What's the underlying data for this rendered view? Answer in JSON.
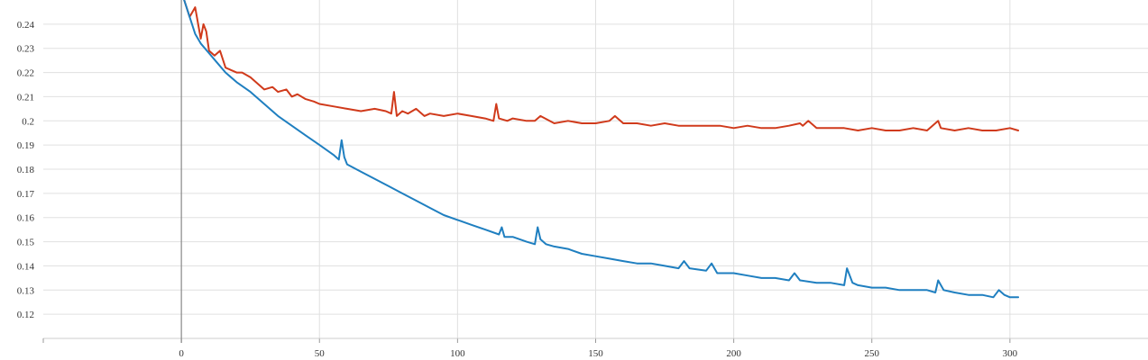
{
  "chart_data": {
    "type": "line",
    "title": "",
    "xlabel": "",
    "ylabel": "",
    "xlim": [
      -50,
      350
    ],
    "ylim": [
      0.11,
      0.25
    ],
    "x_ticks": [
      0,
      50,
      100,
      150,
      200,
      250,
      300
    ],
    "x_tick_labels": [
      "0",
      "50",
      "100",
      "150",
      "200",
      "250",
      "300"
    ],
    "y_ticks": [
      0.12,
      0.13,
      0.14,
      0.15,
      0.16,
      0.17,
      0.18,
      0.19,
      0.2,
      0.21,
      0.22,
      0.23,
      0.24
    ],
    "y_tick_labels": [
      "0.12",
      "0.13",
      "0.14",
      "0.15",
      "0.16",
      "0.17",
      "0.18",
      "0.19",
      "0.2",
      "0.21",
      "0.22",
      "0.23",
      "0.24"
    ],
    "grid": true,
    "legend": "none",
    "series": [
      {
        "color": "#d03a1b",
        "x": [
          1,
          3,
          5,
          7,
          8,
          9,
          10,
          12,
          14,
          16,
          18,
          20,
          22,
          25,
          28,
          30,
          33,
          35,
          38,
          40,
          42,
          45,
          48,
          50,
          55,
          60,
          65,
          70,
          74,
          76,
          77,
          78,
          80,
          82,
          85,
          88,
          90,
          95,
          100,
          105,
          110,
          113,
          114,
          115,
          118,
          120,
          125,
          128,
          130,
          135,
          140,
          145,
          150,
          155,
          157,
          160,
          165,
          170,
          175,
          180,
          185,
          190,
          195,
          200,
          205,
          210,
          215,
          220,
          224,
          225,
          227,
          230,
          235,
          240,
          245,
          250,
          255,
          260,
          265,
          270,
          274,
          275,
          280,
          285,
          290,
          295,
          300,
          303
        ],
        "y": [
          0.25,
          0.243,
          0.247,
          0.234,
          0.24,
          0.237,
          0.229,
          0.227,
          0.229,
          0.222,
          0.221,
          0.22,
          0.22,
          0.218,
          0.215,
          0.213,
          0.214,
          0.212,
          0.213,
          0.21,
          0.211,
          0.209,
          0.208,
          0.207,
          0.206,
          0.205,
          0.204,
          0.205,
          0.204,
          0.203,
          0.212,
          0.202,
          0.204,
          0.203,
          0.205,
          0.202,
          0.203,
          0.202,
          0.203,
          0.202,
          0.201,
          0.2,
          0.207,
          0.201,
          0.2,
          0.201,
          0.2,
          0.2,
          0.202,
          0.199,
          0.2,
          0.199,
          0.199,
          0.2,
          0.202,
          0.199,
          0.199,
          0.198,
          0.199,
          0.198,
          0.198,
          0.198,
          0.198,
          0.197,
          0.198,
          0.197,
          0.197,
          0.198,
          0.199,
          0.198,
          0.2,
          0.197,
          0.197,
          0.197,
          0.196,
          0.197,
          0.196,
          0.196,
          0.197,
          0.196,
          0.2,
          0.197,
          0.196,
          0.197,
          0.196,
          0.196,
          0.197,
          0.196
        ]
      },
      {
        "color": "#1f7fc0",
        "x": [
          1,
          3,
          5,
          7,
          10,
          13,
          16,
          20,
          25,
          30,
          35,
          40,
          45,
          50,
          55,
          57,
          58,
          59,
          60,
          65,
          70,
          75,
          80,
          85,
          90,
          95,
          100,
          105,
          110,
          115,
          116,
          117,
          120,
          125,
          128,
          129,
          130,
          132,
          135,
          140,
          145,
          150,
          155,
          160,
          165,
          170,
          175,
          180,
          182,
          184,
          190,
          192,
          194,
          200,
          205,
          210,
          215,
          220,
          222,
          224,
          230,
          235,
          240,
          241,
          243,
          245,
          250,
          255,
          260,
          265,
          270,
          273,
          274,
          276,
          280,
          285,
          290,
          294,
          296,
          298,
          300,
          303
        ],
        "y": [
          0.25,
          0.243,
          0.236,
          0.232,
          0.228,
          0.224,
          0.22,
          0.216,
          0.212,
          0.207,
          0.202,
          0.198,
          0.194,
          0.19,
          0.186,
          0.184,
          0.192,
          0.185,
          0.182,
          0.179,
          0.176,
          0.173,
          0.17,
          0.167,
          0.164,
          0.161,
          0.159,
          0.157,
          0.155,
          0.153,
          0.156,
          0.152,
          0.152,
          0.15,
          0.149,
          0.156,
          0.151,
          0.149,
          0.148,
          0.147,
          0.145,
          0.144,
          0.143,
          0.142,
          0.141,
          0.141,
          0.14,
          0.139,
          0.142,
          0.139,
          0.138,
          0.141,
          0.137,
          0.137,
          0.136,
          0.135,
          0.135,
          0.134,
          0.137,
          0.134,
          0.133,
          0.133,
          0.132,
          0.139,
          0.133,
          0.132,
          0.131,
          0.131,
          0.13,
          0.13,
          0.13,
          0.129,
          0.134,
          0.13,
          0.129,
          0.128,
          0.128,
          0.127,
          0.13,
          0.128,
          0.127,
          0.127
        ]
      }
    ]
  }
}
